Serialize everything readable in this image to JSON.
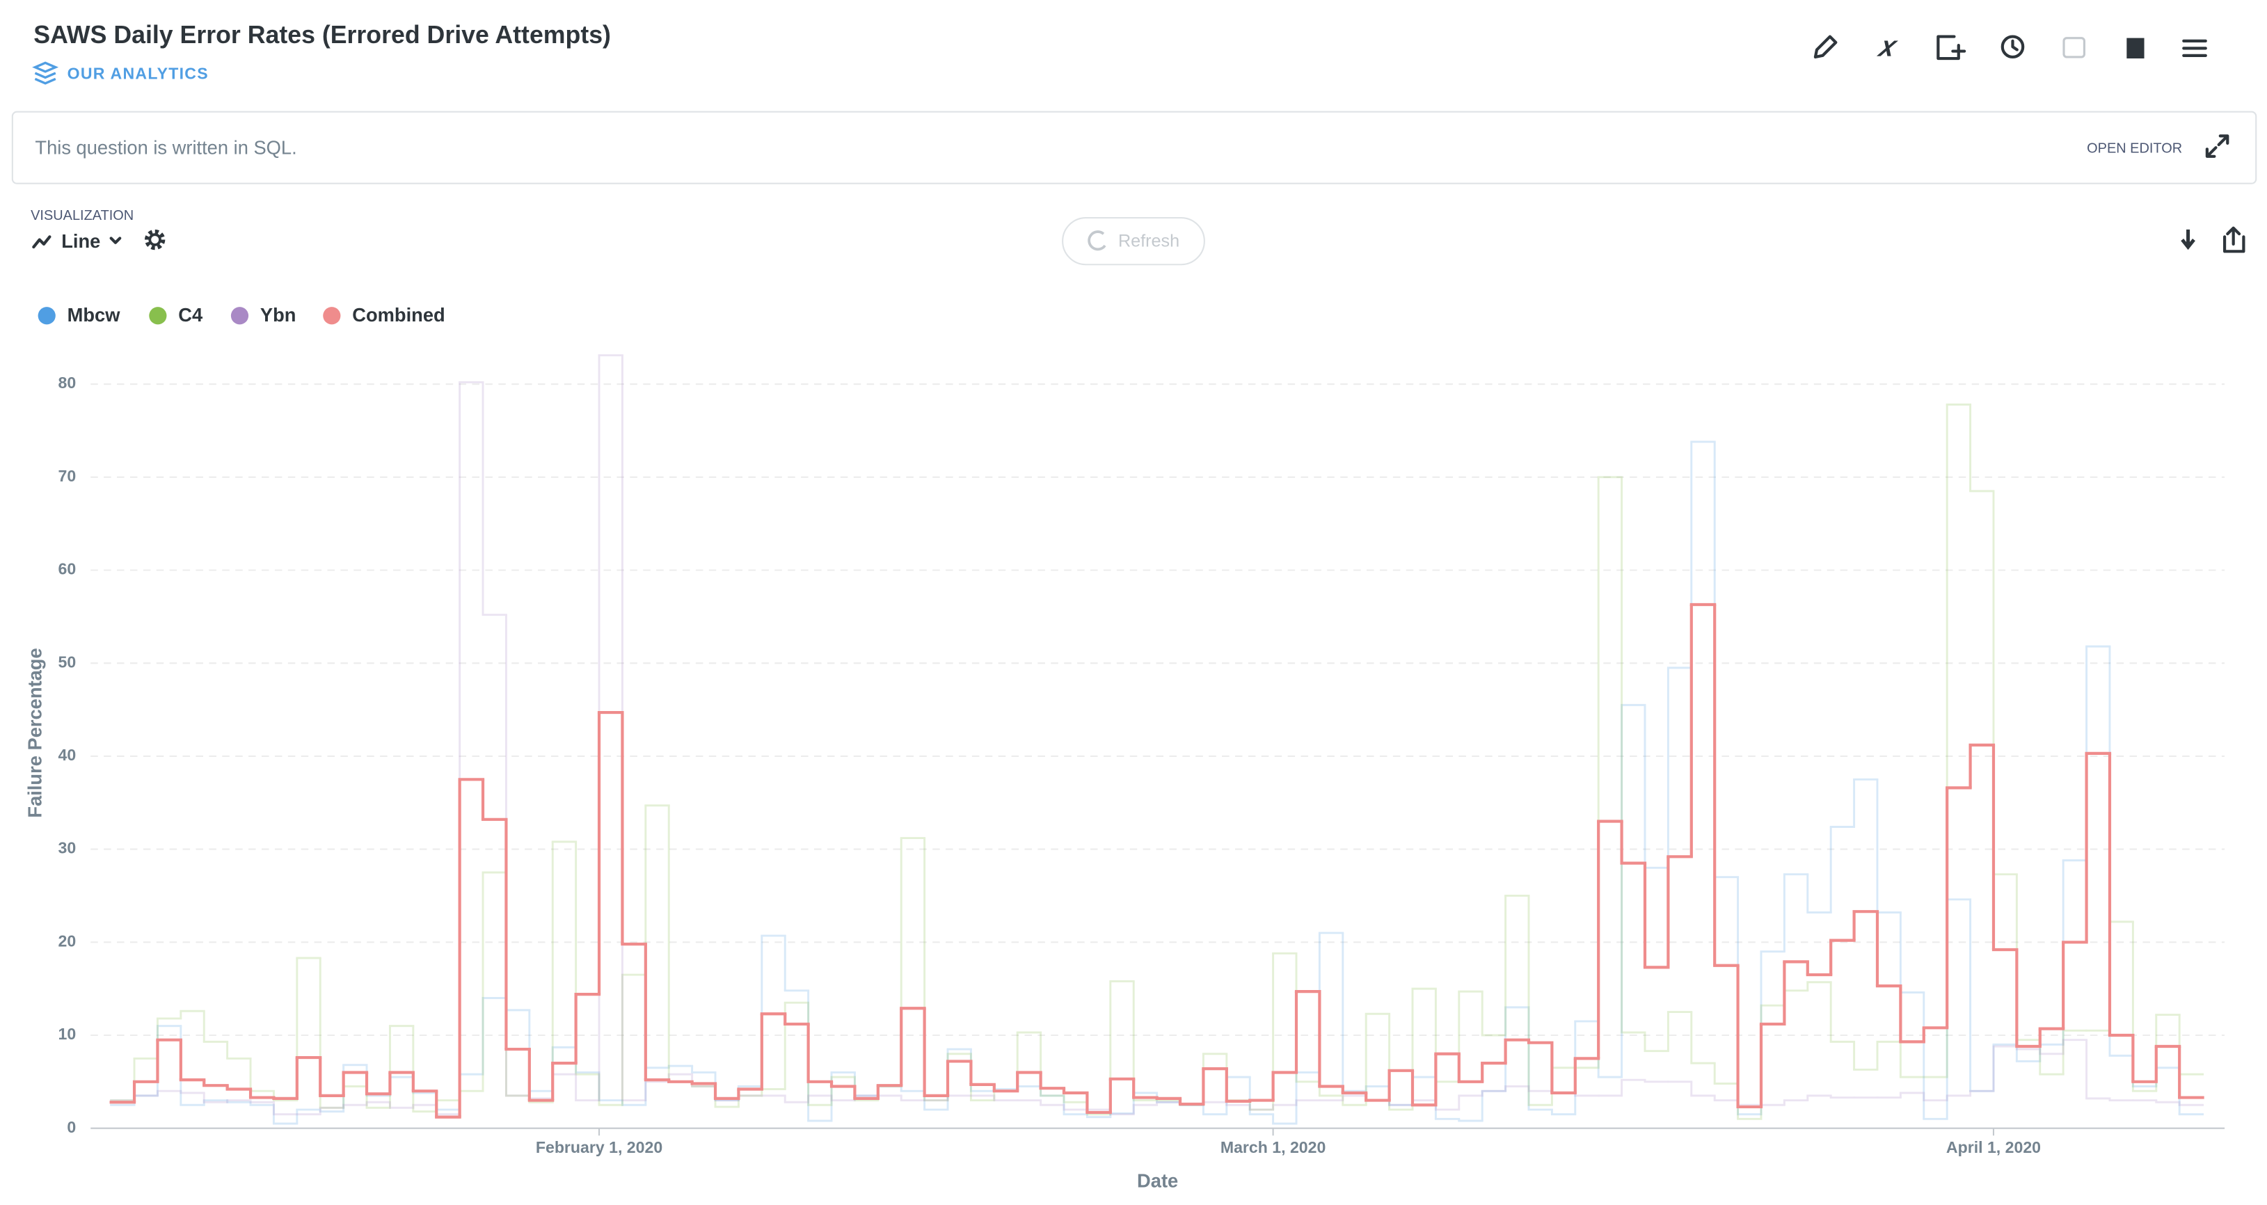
{
  "header": {
    "title": "SAWS Daily Error Rates (Errored Drive Attempts)",
    "collection": "OUR ANALYTICS"
  },
  "query_bar": {
    "note": "This question is written in SQL.",
    "action": "OPEN EDITOR"
  },
  "toolbar": {
    "label": "VISUALIZATION",
    "display": "Line",
    "refresh": "Refresh"
  },
  "chart_data": {
    "type": "line",
    "step": true,
    "grid": true,
    "x_label": "Date",
    "y_label": "Failure Percentage",
    "x": [
      "2020-01-11",
      "2020-01-12",
      "2020-01-13",
      "2020-01-14",
      "2020-01-15",
      "2020-01-16",
      "2020-01-17",
      "2020-01-18",
      "2020-01-19",
      "2020-01-20",
      "2020-01-21",
      "2020-01-22",
      "2020-01-23",
      "2020-01-24",
      "2020-01-25",
      "2020-01-26",
      "2020-01-27",
      "2020-01-28",
      "2020-01-29",
      "2020-01-30",
      "2020-01-31",
      "2020-02-01",
      "2020-02-02",
      "2020-02-03",
      "2020-02-04",
      "2020-02-05",
      "2020-02-06",
      "2020-02-07",
      "2020-02-08",
      "2020-02-09",
      "2020-02-10",
      "2020-02-11",
      "2020-02-12",
      "2020-02-13",
      "2020-02-14",
      "2020-02-15",
      "2020-02-16",
      "2020-02-17",
      "2020-02-18",
      "2020-02-19",
      "2020-02-20",
      "2020-02-21",
      "2020-02-22",
      "2020-02-23",
      "2020-02-24",
      "2020-02-25",
      "2020-02-26",
      "2020-02-27",
      "2020-02-28",
      "2020-02-29",
      "2020-03-01",
      "2020-03-02",
      "2020-03-03",
      "2020-03-04",
      "2020-03-05",
      "2020-03-06",
      "2020-03-07",
      "2020-03-08",
      "2020-03-09",
      "2020-03-10",
      "2020-03-11",
      "2020-03-12",
      "2020-03-13",
      "2020-03-14",
      "2020-03-15",
      "2020-03-16",
      "2020-03-17",
      "2020-03-18",
      "2020-03-19",
      "2020-03-20",
      "2020-03-21",
      "2020-03-22",
      "2020-03-23",
      "2020-03-24",
      "2020-03-25",
      "2020-03-26",
      "2020-03-27",
      "2020-03-28",
      "2020-03-29",
      "2020-03-30",
      "2020-03-31",
      "2020-04-01",
      "2020-04-02",
      "2020-04-03",
      "2020-04-04",
      "2020-04-05",
      "2020-04-06",
      "2020-04-07",
      "2020-04-08",
      "2020-04-09"
    ],
    "xlim": [
      "2020-01-11",
      "2020-04-10"
    ],
    "xticks": [
      {
        "value": "2020-02-01",
        "label": "February 1, 2020"
      },
      {
        "value": "2020-03-01",
        "label": "March 1, 2020"
      },
      {
        "value": "2020-04-01",
        "label": "April 1, 2020"
      }
    ],
    "ylim": [
      0,
      85
    ],
    "yticks": [
      0,
      10,
      20,
      30,
      40,
      50,
      60,
      70,
      80
    ],
    "series": [
      {
        "name": "Mbcw",
        "color": "#509EE3",
        "values": [
          2.5,
          3.5,
          11,
          2.5,
          3,
          2.8,
          2.5,
          0.5,
          2,
          1.8,
          6.8,
          3.5,
          5.5,
          3.8,
          2,
          5.8,
          14,
          12.7,
          4,
          8.7,
          6,
          3,
          2.5,
          6.5,
          6.7,
          6,
          3,
          4.5,
          20.7,
          14.8,
          0.8,
          6,
          3.5,
          4.5,
          4,
          2,
          8.5,
          4,
          4.2,
          4.5,
          3.5,
          1.5,
          1.2,
          1.6,
          3.8,
          2.8,
          2.5,
          1.5,
          5.5,
          1.5,
          0.5,
          6,
          21,
          4,
          4.5,
          2.5,
          5.5,
          1,
          0.8,
          4,
          13,
          2,
          1.5,
          11.5,
          5.5,
          45.5,
          28,
          49.5,
          73.8,
          27,
          1.5,
          19,
          27.3,
          23.2,
          32.4,
          37.5,
          23.2,
          14.6,
          1,
          24.6,
          4,
          9,
          7.2,
          9,
          28.8,
          51.8,
          7.8,
          4.5,
          6.5,
          1.5
        ]
      },
      {
        "name": "C4",
        "color": "#88BF4D",
        "values": [
          3,
          7.5,
          11.8,
          12.6,
          9.3,
          7.5,
          4,
          3,
          18.3,
          2.2,
          4.5,
          2.2,
          11,
          1.8,
          3,
          4,
          27.5,
          3.5,
          2.8,
          30.8,
          5.8,
          2.5,
          16.5,
          34.7,
          5,
          4.5,
          2.3,
          3.5,
          4.2,
          13.5,
          2.5,
          5.5,
          3,
          4.5,
          31.2,
          3,
          8,
          3,
          4,
          10.3,
          3.5,
          2.8,
          1.5,
          15.8,
          3,
          3,
          2.5,
          8,
          3,
          2,
          18.8,
          5,
          3.5,
          2.5,
          12.3,
          2,
          15,
          5,
          14.7,
          10,
          25,
          2.5,
          6.5,
          6.5,
          70,
          10.3,
          8.3,
          12.5,
          7,
          4.8,
          1,
          13.2,
          14.8,
          15.7,
          9.3,
          6.3,
          9.3,
          5.5,
          5.5,
          77.8,
          68.5,
          27.3,
          9.5,
          5.8,
          10.5,
          10.5,
          22.2,
          4,
          12.2,
          5.8
        ]
      },
      {
        "name": "Ybn",
        "color": "#A989C5",
        "values": [
          3,
          3.5,
          4,
          3.8,
          2.8,
          3,
          2.8,
          1.5,
          1.5,
          2.2,
          2.5,
          2.8,
          2.2,
          2.5,
          1.5,
          80.2,
          55.2,
          3.5,
          3.2,
          5.8,
          3,
          83.1,
          3,
          5,
          5.8,
          4.5,
          3,
          3.5,
          3.5,
          2.8,
          3.5,
          3,
          3.5,
          3.5,
          3,
          3,
          3.5,
          3.5,
          3,
          3,
          2.5,
          2,
          2,
          1.5,
          2.5,
          2.8,
          2.5,
          2.8,
          2.5,
          2,
          2.5,
          3,
          3,
          3.5,
          3,
          2.5,
          3,
          2,
          3.5,
          4,
          4.5,
          4,
          3.8,
          3.5,
          3.5,
          5.2,
          5,
          5,
          3.5,
          3,
          2.5,
          2.5,
          3,
          3.5,
          3.3,
          3.3,
          3.3,
          3.8,
          3,
          3.5,
          4,
          8.8,
          8.5,
          8,
          9.5,
          3.2,
          3,
          3,
          2.8,
          2.5
        ]
      },
      {
        "name": "Combined",
        "color": "#EF8C8C",
        "values": [
          2.8,
          5,
          9.5,
          5.2,
          4.6,
          4.2,
          3.3,
          3.2,
          7.6,
          3.5,
          6,
          3.7,
          6,
          4,
          1.2,
          37.5,
          33.2,
          8.5,
          3,
          7,
          14.4,
          44.7,
          19.8,
          5.2,
          5,
          4.8,
          3.2,
          4.2,
          12.3,
          11.2,
          5,
          4.5,
          3.2,
          4.6,
          12.9,
          3.5,
          7.2,
          4.7,
          4,
          6,
          4.3,
          3.8,
          1.7,
          5.3,
          3.3,
          3.2,
          2.6,
          6.4,
          2.9,
          3,
          6,
          14.7,
          4.5,
          3.8,
          3,
          6.2,
          2.5,
          8,
          5,
          7,
          9.5,
          9.2,
          3.8,
          7.5,
          33,
          28.5,
          17.3,
          29.2,
          56.3,
          17.5,
          2.3,
          11.2,
          17.9,
          16.5,
          20.2,
          23.3,
          15.3,
          9.3,
          10.8,
          36.6,
          41.2,
          19.2,
          8.8,
          10.7,
          20,
          40.3,
          10,
          5,
          8.8,
          3.3
        ]
      }
    ]
  }
}
